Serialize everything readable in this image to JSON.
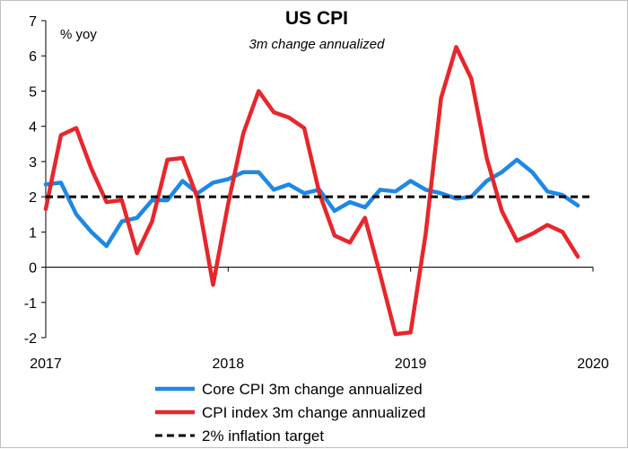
{
  "chart_data": {
    "type": "line",
    "title": "US CPI",
    "subtitle": "3m change annualized",
    "ylabel": "% yoy",
    "xlabel": "",
    "ylim": [
      -2,
      7
    ],
    "yticks": [
      -2,
      -1,
      0,
      1,
      2,
      3,
      4,
      5,
      6,
      7
    ],
    "xlim": [
      2017,
      2020
    ],
    "xticks": [
      2017,
      2018,
      2019,
      2020
    ],
    "grid": false,
    "legend_position": "bottom",
    "series": [
      {
        "name": "Core CPI 3m change annualized",
        "color": "#1e88e5",
        "x": [
          2017.0,
          2017.083,
          2017.167,
          2017.25,
          2017.333,
          2017.417,
          2017.5,
          2017.583,
          2017.667,
          2017.75,
          2017.833,
          2017.917,
          2018.0,
          2018.083,
          2018.167,
          2018.25,
          2018.333,
          2018.417,
          2018.5,
          2018.583,
          2018.667,
          2018.75,
          2018.833,
          2018.917,
          2019.0,
          2019.083,
          2019.167,
          2019.25,
          2019.333,
          2019.417,
          2019.5,
          2019.583,
          2019.667,
          2019.75,
          2019.833,
          2019.917
        ],
        "values": [
          2.35,
          2.4,
          1.5,
          1.0,
          0.6,
          1.3,
          1.4,
          1.9,
          1.9,
          2.45,
          2.1,
          2.4,
          2.5,
          2.7,
          2.7,
          2.2,
          2.35,
          2.1,
          2.2,
          1.6,
          1.85,
          1.7,
          2.2,
          2.15,
          2.45,
          2.2,
          2.1,
          1.95,
          2.0,
          2.45,
          2.7,
          3.05,
          2.7,
          2.15,
          2.05,
          1.75
        ]
      },
      {
        "name": "CPI index 3m change annualized",
        "color": "#e8262b",
        "x": [
          2017.0,
          2017.083,
          2017.167,
          2017.25,
          2017.333,
          2017.417,
          2017.5,
          2017.583,
          2017.667,
          2017.75,
          2017.833,
          2017.917,
          2018.0,
          2018.083,
          2018.167,
          2018.25,
          2018.333,
          2018.417,
          2018.5,
          2018.583,
          2018.667,
          2018.75,
          2018.833,
          2018.917,
          2019.0,
          2019.083,
          2019.167,
          2019.25,
          2019.333,
          2019.417,
          2019.5,
          2019.583,
          2019.667,
          2019.75,
          2019.833,
          2019.917
        ],
        "values": [
          1.65,
          3.75,
          3.95,
          2.8,
          1.85,
          1.9,
          0.4,
          1.3,
          3.05,
          3.1,
          1.95,
          -0.5,
          1.8,
          3.8,
          5.0,
          4.4,
          4.25,
          3.95,
          2.1,
          0.9,
          0.7,
          1.4,
          -0.2,
          -1.9,
          -1.85,
          0.95,
          4.8,
          6.25,
          5.35,
          3.1,
          1.6,
          0.75,
          0.95,
          1.2,
          1.0,
          0.3
        ]
      },
      {
        "name": "2% inflation target",
        "color": "#000000",
        "style": "dashed",
        "x": [
          2017.0,
          2020.0
        ],
        "values": [
          2,
          2
        ]
      }
    ]
  }
}
